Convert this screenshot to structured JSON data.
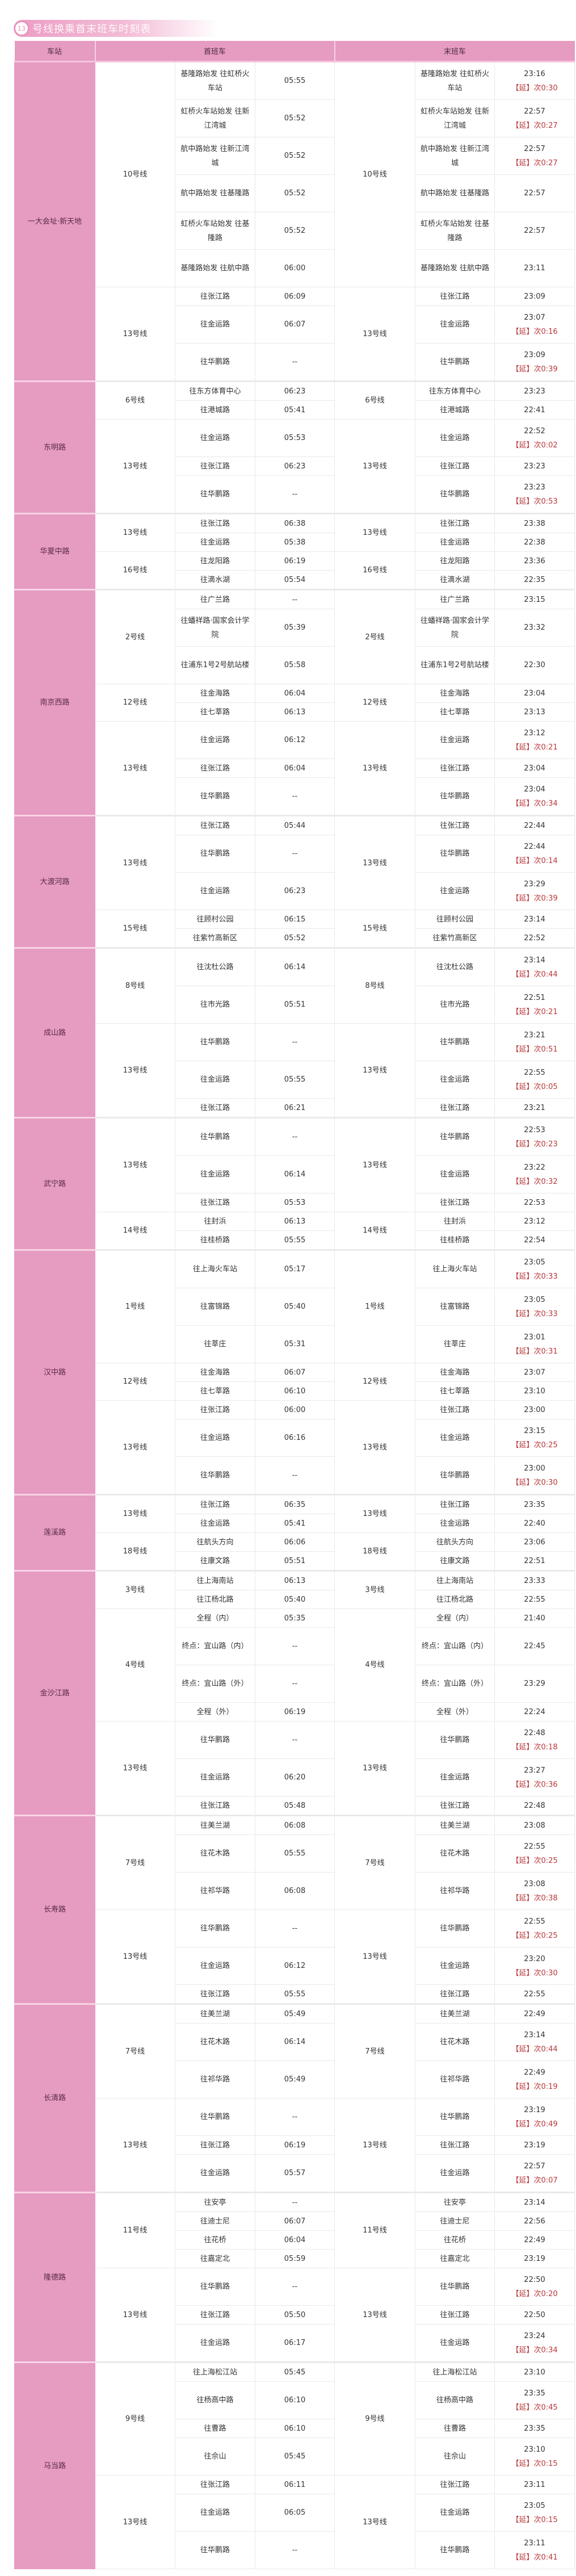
{
  "title": {
    "badge": "13",
    "text": "号线换乘首末班车时刻表"
  },
  "header": {
    "station": "车站",
    "first": "首班车",
    "last": "末班车"
  },
  "colors": {
    "accent": "#e69bc1",
    "extension": "#b8373a"
  },
  "stations": [
    {
      "name": "一大会址·新天地",
      "lines": [
        {
          "line": "10号线",
          "rows": [
            {
              "dest": "基隆路始发 往虹桥火车站",
              "first": "05:55",
              "last": "23:16",
              "ext": "【延】次0:30"
            },
            {
              "dest": "虹桥火车站始发 往新江湾城",
              "first": "05:52",
              "last": "22:57",
              "ext": "【延】次0:27"
            },
            {
              "dest": "航中路始发 往新江湾城",
              "first": "05:52",
              "last": "22:57",
              "ext": "【延】次0:27"
            },
            {
              "dest": "航中路始发 往基隆路",
              "first": "05:52",
              "last": "22:57"
            },
            {
              "dest": "虹桥火车站始发 往基隆路",
              "first": "05:52",
              "last": "22:57"
            },
            {
              "dest": "基隆路始发 往航中路",
              "first": "06:00",
              "last": "23:11"
            }
          ]
        },
        {
          "line": "13号线",
          "rows": [
            {
              "dest": "往张江路",
              "first": "06:09",
              "last": "23:09"
            },
            {
              "dest": "往金运路",
              "first": "06:07",
              "last": "23:07",
              "ext": "【延】次0:16"
            },
            {
              "dest": "往华鹏路",
              "first": "--",
              "last": "23:09",
              "ext": "【延】次0:39"
            }
          ]
        }
      ]
    },
    {
      "name": "东明路",
      "lines": [
        {
          "line": "6号线",
          "rows": [
            {
              "dest": "往东方体育中心",
              "first": "06:23",
              "last": "23:23"
            },
            {
              "dest": "往港城路",
              "first": "05:41",
              "last": "22:41"
            }
          ]
        },
        {
          "line": "13号线",
          "rows": [
            {
              "dest": "往金运路",
              "first": "05:53",
              "last": "22:52",
              "ext": "【延】次0:02"
            },
            {
              "dest": "往张江路",
              "first": "06:23",
              "last": "23:23"
            },
            {
              "dest": "往华鹏路",
              "first": "--",
              "last": "23:23",
              "ext": "【延】次0:53"
            }
          ]
        }
      ]
    },
    {
      "name": "华夏中路",
      "lines": [
        {
          "line": "13号线",
          "rows": [
            {
              "dest": "往张江路",
              "first": "06:38",
              "last": "23:38"
            },
            {
              "dest": "往金运路",
              "first": "05:38",
              "last": "22:38"
            }
          ]
        },
        {
          "line": "16号线",
          "rows": [
            {
              "dest": "往龙阳路",
              "first": "06:19",
              "last": "23:36"
            },
            {
              "dest": "往滴水湖",
              "first": "05:54",
              "last": "22:35"
            }
          ]
        }
      ]
    },
    {
      "name": "南京西路",
      "lines": [
        {
          "line": "2号线",
          "rows": [
            {
              "dest": "往广兰路",
              "first": "--",
              "last": "23:15"
            },
            {
              "dest": "往蟠祥路·国家会计学院",
              "first": "05:39",
              "last": "23:32"
            },
            {
              "dest": "往浦东1号2号航站楼",
              "first": "05:58",
              "last": "22:30"
            }
          ]
        },
        {
          "line": "12号线",
          "rows": [
            {
              "dest": "往金海路",
              "first": "06:04",
              "last": "23:04"
            },
            {
              "dest": "往七莘路",
              "first": "06:13",
              "last": "23:13"
            }
          ]
        },
        {
          "line": "13号线",
          "rows": [
            {
              "dest": "往金运路",
              "first": "06:12",
              "last": "23:12",
              "ext": "【延】次0:21"
            },
            {
              "dest": "往张江路",
              "first": "06:04",
              "last": "23:04"
            },
            {
              "dest": "往华鹏路",
              "first": "--",
              "last": "23:04",
              "ext": "【延】次0:34"
            }
          ]
        }
      ]
    },
    {
      "name": "大渡河路",
      "lines": [
        {
          "line": "13号线",
          "rows": [
            {
              "dest": "往张江路",
              "first": "05:44",
              "last": "22:44"
            },
            {
              "dest": "往华鹏路",
              "first": "--",
              "last": "22:44",
              "ext": "【延】次0:14"
            },
            {
              "dest": "往金运路",
              "first": "06:23",
              "last": "23:29",
              "ext": "【延】次0:39"
            }
          ]
        },
        {
          "line": "15号线",
          "rows": [
            {
              "dest": "往顾村公园",
              "first": "06:15",
              "last": "23:14"
            },
            {
              "dest": "往紫竹高新区",
              "first": "05:52",
              "last": "22:52"
            }
          ]
        }
      ]
    },
    {
      "name": "成山路",
      "lines": [
        {
          "line": "8号线",
          "rows": [
            {
              "dest": "往沈杜公路",
              "first": "06:14",
              "last": "23:14",
              "ext": "【延】次0:44"
            },
            {
              "dest": "往市光路",
              "first": "05:51",
              "last": "22:51",
              "ext": "【延】次0:21"
            }
          ]
        },
        {
          "line": "13号线",
          "rows": [
            {
              "dest": "往华鹏路",
              "first": "--",
              "last": "23:21",
              "ext": "【延】次0:51"
            },
            {
              "dest": "往金运路",
              "first": "05:55",
              "last": "22:55",
              "ext": "【延】次0:05"
            },
            {
              "dest": "往张江路",
              "first": "06:21",
              "last": "23:21"
            }
          ]
        }
      ]
    },
    {
      "name": "武宁路",
      "lines": [
        {
          "line": "13号线",
          "rows": [
            {
              "dest": "往华鹏路",
              "first": "--",
              "last": "22:53",
              "ext": "【延】次0:23"
            },
            {
              "dest": "往金运路",
              "first": "06:14",
              "last": "23:22",
              "ext": "【延】次0:32"
            },
            {
              "dest": "往张江路",
              "first": "05:53",
              "last": "22:53"
            }
          ]
        },
        {
          "line": "14号线",
          "rows": [
            {
              "dest": "往封浜",
              "first": "06:13",
              "last": "23:12"
            },
            {
              "dest": "往桂桥路",
              "first": "05:55",
              "last": "22:54"
            }
          ]
        }
      ]
    },
    {
      "name": "汉中路",
      "lines": [
        {
          "line": "1号线",
          "rows": [
            {
              "dest": "往上海火车站",
              "first": "05:17",
              "last": "23:05",
              "ext": "【延】次0:33"
            },
            {
              "dest": "往富锦路",
              "first": "05:40",
              "last": "23:05",
              "ext": "【延】次0:33"
            },
            {
              "dest": "往莘庄",
              "first": "05:31",
              "last": "23:01",
              "ext": "【延】次0:31"
            }
          ]
        },
        {
          "line": "12号线",
          "rows": [
            {
              "dest": "往金海路",
              "first": "06:07",
              "last": "23:07"
            },
            {
              "dest": "往七莘路",
              "first": "06:10",
              "last": "23:10"
            }
          ]
        },
        {
          "line": "13号线",
          "rows": [
            {
              "dest": "往张江路",
              "first": "06:00",
              "last": "23:00"
            },
            {
              "dest": "往金运路",
              "first": "06:16",
              "last": "23:15",
              "ext": "【延】次0:25"
            },
            {
              "dest": "往华鹏路",
              "first": "--",
              "last": "23:00",
              "ext": "【延】次0:30"
            }
          ]
        }
      ]
    },
    {
      "name": "莲溪路",
      "lines": [
        {
          "line": "13号线",
          "rows": [
            {
              "dest": "往张江路",
              "first": "06:35",
              "last": "23:35"
            },
            {
              "dest": "往金运路",
              "first": "05:41",
              "last": "22:40"
            }
          ]
        },
        {
          "line": "18号线",
          "rows": [
            {
              "dest": "往航头方向",
              "first": "06:06",
              "last": "23:06"
            },
            {
              "dest": "往康文路",
              "first": "05:51",
              "last": "22:51"
            }
          ]
        }
      ]
    },
    {
      "name": "金沙江路",
      "lines": [
        {
          "line": "3号线",
          "rows": [
            {
              "dest": "往上海南站",
              "first": "06:13",
              "last": "23:33"
            },
            {
              "dest": "往江杨北路",
              "first": "05:40",
              "last": "22:55"
            }
          ]
        },
        {
          "line": "4号线",
          "rows": [
            {
              "dest": "全程（内）",
              "first": "05:35",
              "last": "21:40"
            },
            {
              "dest": "终点：宜山路（内）",
              "first": "--",
              "last": "22:45"
            },
            {
              "dest": "终点：宜山路（外）",
              "first": "--",
              "last": "23:29"
            },
            {
              "dest": "全程（外）",
              "first": "06:19",
              "last": "22:24"
            }
          ]
        },
        {
          "line": "13号线",
          "rows": [
            {
              "dest": "往华鹏路",
              "first": "--",
              "last": "22:48",
              "ext": "【延】次0:18"
            },
            {
              "dest": "往金运路",
              "first": "06:20",
              "last": "23:27",
              "ext": "【延】次0:36"
            },
            {
              "dest": "往张江路",
              "first": "05:48",
              "last": "22:48"
            }
          ]
        }
      ]
    },
    {
      "name": "长寿路",
      "lines": [
        {
          "line": "7号线",
          "rows": [
            {
              "dest": "往美兰湖",
              "first": "06:08",
              "last": "23:08"
            },
            {
              "dest": "往花木路",
              "first": "05:55",
              "last": "22:55",
              "ext": "【延】次0:25"
            },
            {
              "dest": "往祁华路",
              "first": "06:08",
              "last": "23:08",
              "ext": "【延】次0:38"
            }
          ]
        },
        {
          "line": "13号线",
          "rows": [
            {
              "dest": "往华鹏路",
              "first": "--",
              "last": "22:55",
              "ext": "【延】次0:25"
            },
            {
              "dest": "往金运路",
              "first": "06:12",
              "last": "23:20",
              "ext": "【延】次0:30"
            },
            {
              "dest": "往张江路",
              "first": "05:55",
              "last": "22:55"
            }
          ]
        }
      ]
    },
    {
      "name": "长清路",
      "lines": [
        {
          "line": "7号线",
          "rows": [
            {
              "dest": "往美兰湖",
              "first": "05:49",
              "last": "22:49"
            },
            {
              "dest": "往花木路",
              "first": "06:14",
              "last": "23:14",
              "ext": "【延】次0:44"
            },
            {
              "dest": "往祁华路",
              "first": "05:49",
              "last": "22:49",
              "ext": "【延】次0:19"
            }
          ]
        },
        {
          "line": "13号线",
          "rows": [
            {
              "dest": "往华鹏路",
              "first": "--",
              "last": "23:19",
              "ext": "【延】次0:49"
            },
            {
              "dest": "往张江路",
              "first": "06:19",
              "last": "23:19"
            },
            {
              "dest": "往金运路",
              "first": "05:57",
              "last": "22:57",
              "ext": "【延】次0:07"
            }
          ]
        }
      ]
    },
    {
      "name": "隆德路",
      "lines": [
        {
          "line": "11号线",
          "rows": [
            {
              "dest": "往安亭",
              "first": "--",
              "last": "23:14"
            },
            {
              "dest": "往迪士尼",
              "first": "06:07",
              "last": "22:56"
            },
            {
              "dest": "往花桥",
              "first": "06:04",
              "last": "22:49"
            },
            {
              "dest": "往嘉定北",
              "first": "05:59",
              "last": "23:19"
            }
          ]
        },
        {
          "line": "13号线",
          "rows": [
            {
              "dest": "往华鹏路",
              "first": "--",
              "last": "22:50",
              "ext": "【延】次0:20"
            },
            {
              "dest": "往张江路",
              "first": "05:50",
              "last": "22:50"
            },
            {
              "dest": "往金运路",
              "first": "06:17",
              "last": "23:24",
              "ext": "【延】次0:34"
            }
          ]
        }
      ]
    },
    {
      "name": "马当路",
      "lines": [
        {
          "line": "9号线",
          "rows": [
            {
              "dest": "往上海松江站",
              "first": "05:45",
              "last": "23:10"
            },
            {
              "dest": "往杨高中路",
              "first": "06:10",
              "last": "23:35",
              "ext": "【延】次0:45"
            },
            {
              "dest": "往曹路",
              "first": "06:10",
              "last": "23:35"
            },
            {
              "dest": "往佘山",
              "first": "05:45",
              "last": "23:10",
              "ext": "【延】次0:15"
            }
          ]
        },
        {
          "line": "13号线",
          "rows": [
            {
              "dest": "往张江路",
              "first": "06:11",
              "last": "23:11"
            },
            {
              "dest": "往金运路",
              "first": "06:05",
              "last": "23:05",
              "ext": "【延】次0:15"
            },
            {
              "dest": "往华鹏路",
              "first": "--",
              "last": "23:11",
              "ext": "【延】次0:41"
            }
          ]
        }
      ]
    }
  ]
}
